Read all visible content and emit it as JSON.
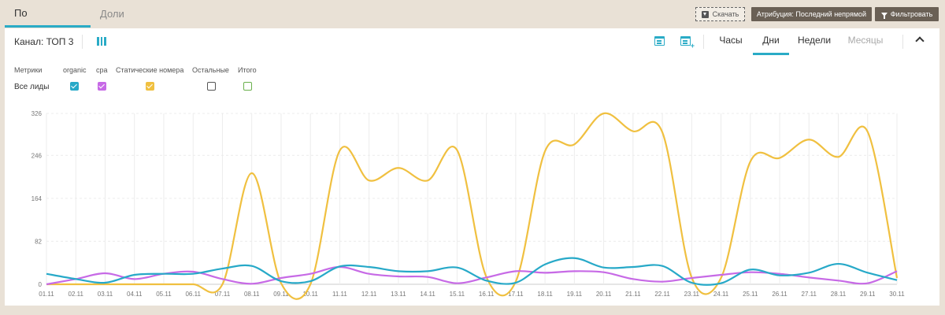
{
  "tabs": {
    "sources": "По источникам",
    "shares": "Доли"
  },
  "toolbar": {
    "download": "Скачать",
    "attribution": "Атрибуция: Последний непрямой",
    "filter": "Фильтровать"
  },
  "panel": {
    "channel": "Канал: ТОП 3",
    "periods": {
      "hours": "Часы",
      "days": "Дни",
      "weeks": "Недели",
      "months": "Месяцы"
    },
    "active_period": "Дни"
  },
  "metrics": {
    "label": "Метрики",
    "row_label": "Все лиды",
    "columns": [
      {
        "label": "organic",
        "checked": true,
        "color": "#27a9c8"
      },
      {
        "label": "cpa",
        "checked": true,
        "color": "#c76ae6"
      },
      {
        "label": "Статические номера",
        "checked": true,
        "color": "#f0c040"
      },
      {
        "label": "Остальные",
        "checked": false,
        "color": "#555555"
      },
      {
        "label": "Итого",
        "checked": false,
        "color": "#6ab04c"
      }
    ]
  },
  "chart_data": {
    "type": "line",
    "x": [
      "01.11",
      "02.11",
      "03.11",
      "04.11",
      "05.11",
      "06.11",
      "07.11",
      "08.11",
      "09.11",
      "10.11",
      "11.11",
      "12.11",
      "13.11",
      "14.11",
      "15.11",
      "16.11",
      "17.11",
      "18.11",
      "19.11",
      "20.11",
      "21.11",
      "22.11",
      "23.11",
      "24.11",
      "25.11",
      "26.11",
      "27.11",
      "28.11",
      "29.11",
      "30.11"
    ],
    "yticks": [
      0,
      82,
      164,
      246,
      326
    ],
    "ylim": [
      0,
      326
    ],
    "grid": true,
    "series": [
      {
        "name": "organic",
        "color": "#27a9c8",
        "values": [
          20,
          10,
          3,
          18,
          20,
          20,
          30,
          35,
          6,
          6,
          34,
          33,
          25,
          25,
          32,
          7,
          3,
          38,
          50,
          32,
          33,
          35,
          3,
          2,
          28,
          17,
          22,
          39,
          22,
          8
        ]
      },
      {
        "name": "cpa",
        "color": "#c76ae6",
        "values": [
          0,
          10,
          21,
          10,
          20,
          24,
          10,
          1,
          12,
          20,
          33,
          20,
          15,
          14,
          2,
          13,
          25,
          22,
          25,
          23,
          10,
          5,
          12,
          18,
          23,
          20,
          13,
          7,
          2,
          25
        ]
      },
      {
        "name": "Статические номера",
        "color": "#f0c040",
        "values": [
          0,
          0,
          0,
          0,
          0,
          0,
          0,
          212,
          2,
          0,
          255,
          198,
          222,
          198,
          256,
          14,
          5,
          254,
          267,
          326,
          292,
          290,
          13,
          12,
          234,
          241,
          276,
          243,
          291,
          12
        ]
      }
    ]
  }
}
